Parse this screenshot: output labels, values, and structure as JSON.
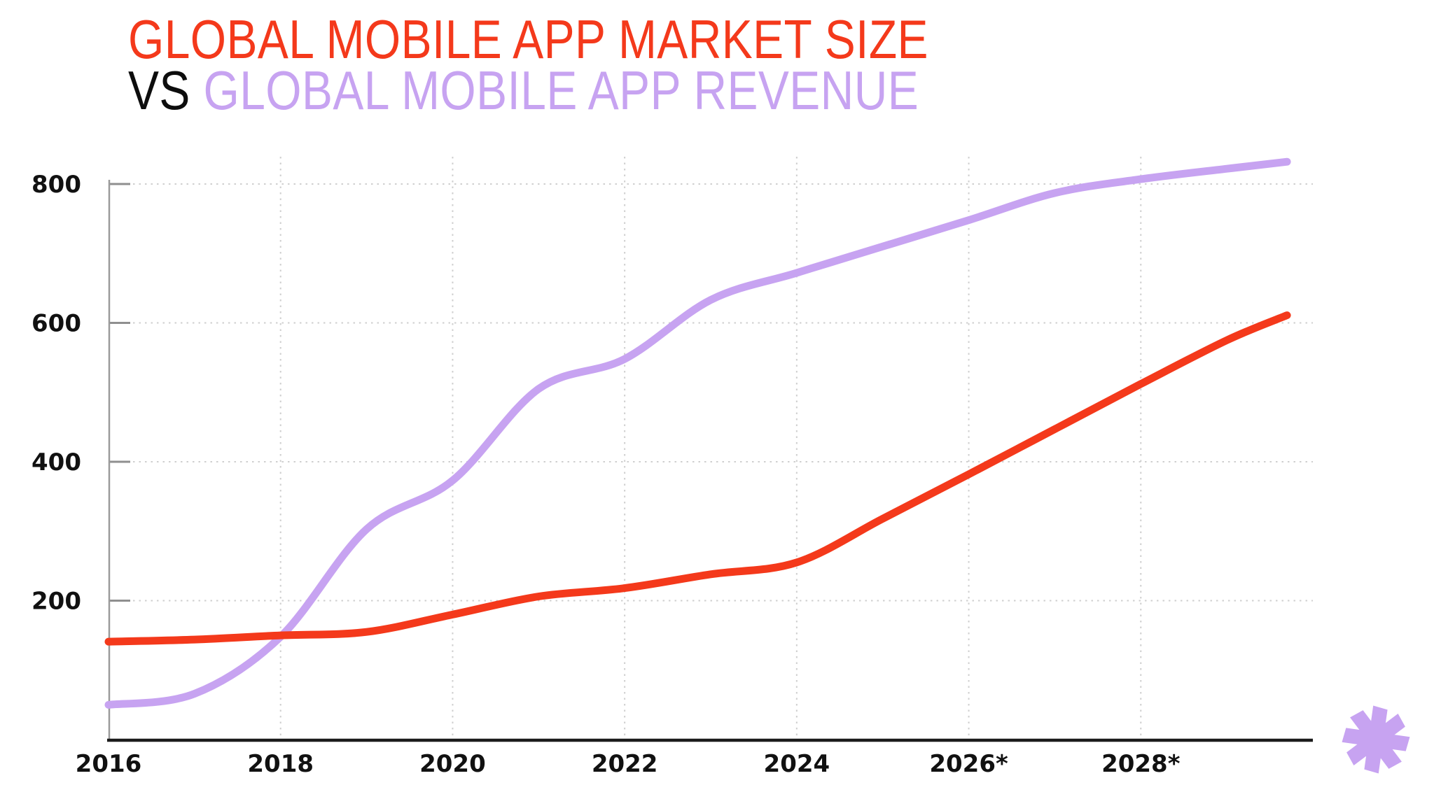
{
  "page": {
    "background": "#ffffff"
  },
  "title": {
    "line1": "GLOBAL MOBILE APP MARKET SIZE",
    "line2_prefix": "VS",
    "line2_rest": "GLOBAL MOBILE APP REVENUE",
    "line1_color": "#f4391b",
    "line2_prefix_color": "#0d0d0d",
    "line2_rest_color": "#c7a3f1"
  },
  "chart_data": {
    "type": "line",
    "title": "Global mobile app market size vs global mobile app revenue",
    "x": [
      2016,
      2017,
      2018,
      2019,
      2020,
      2021,
      2022,
      2023,
      2024,
      2025,
      2026,
      2027,
      2028,
      2029,
      2029.7
    ],
    "series": [
      {
        "name": "Global mobile app revenue",
        "color": "#c7a3f1",
        "values": [
          50,
          66,
          148,
          303,
          373,
          505,
          548,
          633,
          672,
          710,
          748,
          787,
          807,
          822,
          832
        ]
      },
      {
        "name": "Global mobile app market size",
        "color": "#f4391b",
        "values": [
          141,
          144,
          150,
          155,
          180,
          206,
          218,
          238,
          255,
          318,
          382,
          447,
          512,
          575,
          611
        ]
      }
    ],
    "x_tick_labels": [
      "2016",
      "2018",
      "2020",
      "2022",
      "2024",
      "2026*",
      "2028*"
    ],
    "x_tick_years": [
      2016,
      2018,
      2020,
      2022,
      2024,
      2026,
      2028
    ],
    "y_tick_labels": [
      "200",
      "400",
      "600",
      "800"
    ],
    "y_ticks": [
      200,
      400,
      600,
      800
    ],
    "xlim": [
      2016,
      2030
    ],
    "ylim": [
      0,
      840
    ],
    "grid": "dotted",
    "gridline_color": "#cfcfcf",
    "tick_color": "#8f8f8f",
    "y_axis_color": "#9a9a9a",
    "x_axis_color": "#1c1c1c",
    "label_color": "#111111",
    "legend_position": "none",
    "forecast_marker": "*"
  },
  "decor": {
    "asterisk_color": "#c7a3f1"
  }
}
